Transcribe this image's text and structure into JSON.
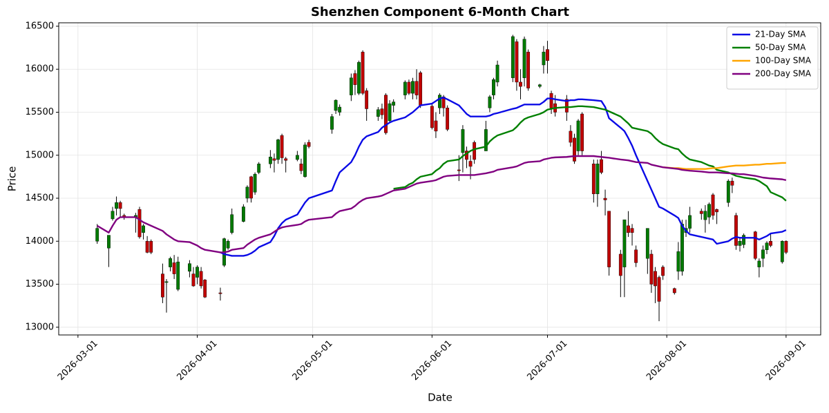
{
  "chart_data": {
    "type": "candlestick",
    "title": "Shenzhen Component 6-Month Chart",
    "x_label": "Date",
    "y_label": "Price",
    "x": [
      "2026-03-06",
      "2026-03-09",
      "2026-03-10",
      "2026-03-11",
      "2026-03-12",
      "2026-03-13",
      "2026-03-16",
      "2026-03-17",
      "2026-03-18",
      "2026-03-19",
      "2026-03-20",
      "2026-03-23",
      "2026-03-24",
      "2026-03-25",
      "2026-03-26",
      "2026-03-27",
      "2026-03-30",
      "2026-03-31",
      "2026-04-01",
      "2026-04-02",
      "2026-04-03",
      "2026-04-07",
      "2026-04-08",
      "2026-04-09",
      "2026-04-10",
      "2026-04-13",
      "2026-04-14",
      "2026-04-15",
      "2026-04-16",
      "2026-04-17",
      "2026-04-20",
      "2026-04-21",
      "2026-04-22",
      "2026-04-23",
      "2026-04-24",
      "2026-04-27",
      "2026-04-28",
      "2026-04-29",
      "2026-04-30",
      "2026-05-06",
      "2026-05-07",
      "2026-05-08",
      "2026-05-11",
      "2026-05-12",
      "2026-05-13",
      "2026-05-14",
      "2026-05-15",
      "2026-05-18",
      "2026-05-19",
      "2026-05-20",
      "2026-05-21",
      "2026-05-22",
      "2026-05-25",
      "2026-05-26",
      "2026-05-27",
      "2026-05-28",
      "2026-05-29",
      "2026-06-01",
      "2026-06-02",
      "2026-06-03",
      "2026-06-04",
      "2026-06-05",
      "2026-06-08",
      "2026-06-09",
      "2026-06-10",
      "2026-06-11",
      "2026-06-12",
      "2026-06-15",
      "2026-06-16",
      "2026-06-17",
      "2026-06-18",
      "2026-06-22",
      "2026-06-23",
      "2026-06-24",
      "2026-06-25",
      "2026-06-26",
      "2026-06-29",
      "2026-06-30",
      "2026-07-01",
      "2026-07-02",
      "2026-07-03",
      "2026-07-06",
      "2026-07-07",
      "2026-07-08",
      "2026-07-09",
      "2026-07-10",
      "2026-07-13",
      "2026-07-14",
      "2026-07-15",
      "2026-07-16",
      "2026-07-17",
      "2026-07-20",
      "2026-07-21",
      "2026-07-22",
      "2026-07-23",
      "2026-07-24",
      "2026-07-27",
      "2026-07-28",
      "2026-07-29",
      "2026-07-30",
      "2026-07-31",
      "2026-08-03",
      "2026-08-04",
      "2026-08-05",
      "2026-08-06",
      "2026-08-07",
      "2026-08-10",
      "2026-08-11",
      "2026-08-12",
      "2026-08-13",
      "2026-08-14",
      "2026-08-17",
      "2026-08-18",
      "2026-08-19",
      "2026-08-20",
      "2026-08-21",
      "2026-08-24",
      "2026-08-25",
      "2026-08-26",
      "2026-08-27",
      "2026-08-28",
      "2026-08-31",
      "2026-09-01"
    ],
    "open": [
      14000,
      13920,
      14260,
      14380,
      14450,
      14300,
      14280,
      14370,
      14100,
      14000,
      14000,
      13620,
      13520,
      13700,
      13750,
      13440,
      13650,
      13620,
      13580,
      13650,
      13550,
      13400,
      13720,
      13920,
      14100,
      14230,
      14500,
      14750,
      14570,
      14800,
      14900,
      14960,
      14950,
      15230,
      14960,
      14950,
      14900,
      14750,
      15150,
      15300,
      15520,
      15500,
      15700,
      15950,
      15720,
      16200,
      15750,
      15450,
      15540,
      15700,
      15400,
      15580,
      15700,
      15850,
      15720,
      15860,
      15960,
      15570,
      15400,
      15550,
      15680,
      15550,
      14830,
      15030,
      15050,
      14930,
      15150,
      15050,
      15550,
      15700,
      15850,
      15900,
      16320,
      15850,
      15900,
      16200,
      15800,
      16050,
      16230,
      15720,
      15600,
      15650,
      15280,
      15200,
      15050,
      15480,
      14900,
      14550,
      14950,
      14500,
      14350,
      13850,
      13700,
      14180,
      14150,
      13900,
      13800,
      13850,
      13650,
      13580,
      13700,
      13450,
      13650,
      13650,
      14100,
      14150,
      14350,
      14250,
      14280,
      14540,
      14370,
      14450,
      14700,
      14300,
      13950,
      13960,
      14110,
      13700,
      13800,
      13900,
      14000,
      13760,
      14000
    ],
    "high": [
      14200,
      14070,
      14400,
      14520,
      14470,
      14320,
      14330,
      14400,
      14200,
      14060,
      14020,
      13740,
      13560,
      13820,
      13840,
      13820,
      13780,
      13700,
      13720,
      13700,
      13560,
      13460,
      14040,
      14020,
      14380,
      14430,
      14650,
      14760,
      14800,
      14920,
      15060,
      15020,
      15190,
      15250,
      14980,
      15050,
      14960,
      15150,
      15180,
      15480,
      15650,
      15590,
      15950,
      15990,
      16100,
      16220,
      15780,
      15560,
      15600,
      15720,
      15640,
      15650,
      15870,
      15880,
      15900,
      16000,
      15980,
      15600,
      15500,
      15720,
      15700,
      15580,
      15000,
      15350,
      15100,
      15000,
      15170,
      15400,
      15700,
      15900,
      16100,
      16400,
      16350,
      16000,
      16380,
      16230,
      15830,
      16270,
      16330,
      15750,
      15700,
      15700,
      15350,
      15250,
      15420,
      15500,
      14950,
      14950,
      15050,
      14600,
      14350,
      13900,
      14250,
      14350,
      14200,
      13950,
      14150,
      13900,
      13700,
      13600,
      13720,
      13460,
      13990,
      14250,
      14250,
      14400,
      14380,
      14420,
      14450,
      14560,
      14380,
      14720,
      14740,
      14330,
      14050,
      14090,
      14120,
      13800,
      13950,
      14000,
      14080,
      14010,
      14010
    ],
    "low": [
      13970,
      13700,
      14240,
      14300,
      14280,
      14250,
      14100,
      14030,
      14020,
      13860,
      13850,
      13280,
      13170,
      13650,
      13560,
      13420,
      13580,
      13470,
      13500,
      13450,
      13340,
      13310,
      13700,
      13900,
      14080,
      14220,
      14450,
      14450,
      14540,
      14780,
      14850,
      14800,
      14900,
      14900,
      14800,
      14930,
      14780,
      14740,
      15080,
      15250,
      15480,
      15460,
      15630,
      15700,
      15700,
      15700,
      15400,
      15400,
      15420,
      15240,
      15380,
      15500,
      15650,
      15700,
      15650,
      15650,
      15550,
      15300,
      15200,
      15480,
      15450,
      15280,
      14700,
      14800,
      14850,
      14720,
      14900,
      15050,
      15500,
      15650,
      15800,
      15850,
      15750,
      15650,
      15800,
      15750,
      15780,
      15950,
      15950,
      15480,
      15450,
      15400,
      15100,
      14900,
      15000,
      15000,
      14450,
      14400,
      14780,
      14300,
      13600,
      13350,
      13350,
      14050,
      13950,
      13700,
      13620,
      13400,
      13280,
      13070,
      13550,
      13380,
      13550,
      13600,
      14050,
      14100,
      14250,
      14100,
      14200,
      14250,
      14200,
      14400,
      14560,
      13900,
      13880,
      13920,
      13780,
      13580,
      13700,
      13850,
      13930,
      13740,
      13850
    ],
    "close": [
      14150,
      14070,
      14350,
      14450,
      14380,
      14280,
      14300,
      14050,
      14180,
      13870,
      13870,
      13350,
      13530,
      13800,
      13620,
      13760,
      13740,
      13480,
      13700,
      13480,
      13350,
      13390,
      14030,
      14000,
      14310,
      14400,
      14630,
      14500,
      14780,
      14900,
      14980,
      14940,
      15180,
      14970,
      14940,
      15000,
      14820,
      15120,
      15100,
      15450,
      15640,
      15560,
      15900,
      15820,
      16080,
      15720,
      15540,
      15530,
      15470,
      15260,
      15600,
      15620,
      15850,
      15720,
      15860,
      15700,
      15580,
      15320,
      15280,
      15700,
      15550,
      15300,
      14820,
      15300,
      14950,
      14870,
      14950,
      15300,
      15680,
      15880,
      16050,
      16380,
      15850,
      15800,
      16350,
      15780,
      15820,
      16200,
      16100,
      15550,
      15500,
      15500,
      15150,
      14930,
      15400,
      15050,
      14550,
      14900,
      14800,
      14480,
      13700,
      13600,
      14250,
      14100,
      14100,
      13750,
      14150,
      13500,
      13480,
      13300,
      13600,
      13400,
      13880,
      14200,
      14150,
      14300,
      14320,
      14350,
      14430,
      14300,
      14340,
      14700,
      14650,
      13950,
      14000,
      14070,
      13800,
      13770,
      13900,
      13980,
      13950,
      14000,
      13870
    ],
    "up_color": "#007a00",
    "down_color": "#c00000",
    "wick_color": "#000000",
    "series": [
      {
        "name": "21-Day SMA",
        "color": "#0a0ae6",
        "values": [
          null,
          null,
          null,
          null,
          null,
          null,
          null,
          null,
          null,
          null,
          null,
          null,
          null,
          null,
          null,
          null,
          null,
          null,
          null,
          null,
          null,
          13870,
          13850,
          13840,
          13830,
          13830,
          13840,
          13860,
          13890,
          13930,
          13990,
          14060,
          14150,
          14210,
          14250,
          14310,
          14380,
          14450,
          14500,
          14590,
          14700,
          14800,
          14920,
          15000,
          15100,
          15180,
          15220,
          15270,
          15320,
          15350,
          15380,
          15400,
          15440,
          15470,
          15500,
          15540,
          15580,
          15600,
          15630,
          15660,
          15670,
          15650,
          15580,
          15530,
          15480,
          15450,
          15450,
          15450,
          15460,
          15480,
          15490,
          15540,
          15550,
          15570,
          15590,
          15590,
          15590,
          15620,
          15660,
          15660,
          15650,
          15630,
          15640,
          15640,
          15650,
          15650,
          15640,
          15635,
          15630,
          15560,
          15430,
          15320,
          15280,
          15200,
          15110,
          15000,
          14700,
          14600,
          14500,
          14400,
          14380,
          14300,
          14270,
          14180,
          14120,
          14080,
          14050,
          14040,
          14030,
          14020,
          13970,
          14000,
          14030,
          14050,
          14040,
          14040,
          14040,
          14020,
          14040,
          14060,
          14090,
          14110,
          14130
        ]
      },
      {
        "name": "50-Day SMA",
        "color": "#008000",
        "values": [
          null,
          null,
          null,
          null,
          null,
          null,
          null,
          null,
          null,
          null,
          null,
          null,
          null,
          null,
          null,
          null,
          null,
          null,
          null,
          null,
          null,
          null,
          null,
          null,
          null,
          null,
          null,
          null,
          null,
          null,
          null,
          null,
          null,
          null,
          null,
          null,
          null,
          null,
          null,
          null,
          null,
          null,
          null,
          null,
          null,
          null,
          null,
          null,
          null,
          null,
          null,
          14610,
          14630,
          14660,
          14680,
          14720,
          14750,
          14780,
          14820,
          14850,
          14900,
          14930,
          14950,
          14990,
          15020,
          15050,
          15070,
          15100,
          15160,
          15200,
          15230,
          15290,
          15330,
          15380,
          15420,
          15440,
          15480,
          15500,
          15530,
          15540,
          15550,
          15560,
          15560,
          15565,
          15570,
          15570,
          15560,
          15550,
          15540,
          15530,
          15510,
          15450,
          15410,
          15370,
          15320,
          15310,
          15280,
          15250,
          15200,
          15160,
          15130,
          15080,
          15070,
          15020,
          14980,
          14950,
          14920,
          14900,
          14880,
          14870,
          14830,
          14800,
          14780,
          14760,
          14750,
          14740,
          14720,
          14700,
          14670,
          14640,
          14570,
          14510,
          14470
        ]
      },
      {
        "name": "100-Day SMA",
        "color": "#ffa500",
        "values": [
          null,
          null,
          null,
          null,
          null,
          null,
          null,
          null,
          null,
          null,
          null,
          null,
          null,
          null,
          null,
          null,
          null,
          null,
          null,
          null,
          null,
          null,
          null,
          null,
          null,
          null,
          null,
          null,
          null,
          null,
          null,
          null,
          null,
          null,
          null,
          null,
          null,
          null,
          null,
          null,
          null,
          null,
          null,
          null,
          null,
          null,
          null,
          null,
          null,
          null,
          null,
          null,
          null,
          null,
          null,
          null,
          null,
          null,
          null,
          null,
          null,
          null,
          null,
          null,
          null,
          null,
          null,
          null,
          null,
          null,
          null,
          null,
          null,
          null,
          null,
          null,
          null,
          null,
          null,
          null,
          null,
          null,
          null,
          null,
          null,
          null,
          null,
          null,
          null,
          null,
          null,
          null,
          null,
          null,
          null,
          null,
          null,
          null,
          null,
          null,
          14860,
          14850,
          14850,
          14845,
          14840,
          14840,
          14840,
          14840,
          14845,
          14850,
          14850,
          14870,
          14875,
          14880,
          14880,
          14880,
          14890,
          14890,
          14895,
          14900,
          14900,
          14910,
          14910
        ]
      },
      {
        "name": "200-Day SMA",
        "color": "#800080",
        "values": [
          14180,
          14100,
          14180,
          14250,
          14280,
          14280,
          14280,
          14250,
          14220,
          14200,
          14180,
          14120,
          14080,
          14050,
          14020,
          14000,
          13990,
          13970,
          13950,
          13920,
          13900,
          13870,
          13870,
          13880,
          13900,
          13920,
          13960,
          13990,
          14020,
          14040,
          14080,
          14110,
          14140,
          14160,
          14170,
          14190,
          14200,
          14230,
          14250,
          14280,
          14320,
          14350,
          14380,
          14410,
          14450,
          14480,
          14500,
          14520,
          14530,
          14550,
          14570,
          14590,
          14610,
          14630,
          14650,
          14670,
          14680,
          14700,
          14710,
          14730,
          14750,
          14760,
          14770,
          14770,
          14770,
          14770,
          14770,
          14790,
          14800,
          14810,
          14830,
          14860,
          14870,
          14890,
          14910,
          14920,
          14930,
          14950,
          14960,
          14970,
          14975,
          14980,
          14985,
          14990,
          14990,
          14990,
          14990,
          14985,
          14980,
          14975,
          14970,
          14950,
          14945,
          14940,
          14930,
          14920,
          14910,
          14890,
          14880,
          14870,
          14860,
          14845,
          14840,
          14830,
          14825,
          14820,
          14810,
          14805,
          14800,
          14800,
          14800,
          14790,
          14790,
          14785,
          14780,
          14780,
          14760,
          14750,
          14740,
          14735,
          14730,
          14720,
          14710
        ]
      }
    ],
    "xlim": [
      "2026-02-24",
      "2026-09-10"
    ],
    "xticks": [
      "2026-03-01",
      "2026-04-01",
      "2026-05-01",
      "2026-06-01",
      "2026-07-01",
      "2026-08-01",
      "2026-09-01"
    ],
    "ylim": [
      12910,
      16540
    ],
    "yticks": [
      13000,
      13500,
      14000,
      14500,
      15000,
      15500,
      16000,
      16500
    ],
    "grid": true,
    "legend": "upper right"
  }
}
